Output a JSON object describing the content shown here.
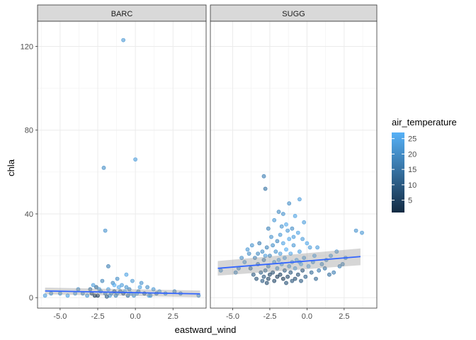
{
  "chart_data": {
    "type": "scatter",
    "xlabel": "eastward_wind",
    "ylabel": "chla",
    "xlim": [
      -6.5,
      4.7
    ],
    "ylim": [
      -5,
      132
    ],
    "x_ticks": [
      -5.0,
      -2.5,
      0.0,
      2.5
    ],
    "x_tick_labels": [
      "-5.0",
      "-2.5",
      "0.0",
      "2.5"
    ],
    "y_ticks": [
      0,
      40,
      80,
      120
    ],
    "y_tick_labels": [
      "0",
      "40",
      "80",
      "120"
    ],
    "grid": true,
    "color_scale": {
      "title": "air_temperature",
      "range": [
        1,
        27
      ],
      "ticks": [
        5,
        10,
        15,
        20,
        25
      ],
      "tick_labels": [
        "5",
        "10",
        "15",
        "20",
        "25"
      ],
      "low_color": "#132B43",
      "high_color": "#56B1F7"
    },
    "legend_position": "right",
    "trend_color": "#3366FF",
    "panels": [
      {
        "name": "BARC",
        "trend": {
          "x": [
            -6.0,
            4.3
          ],
          "y": [
            3.2,
            1.8
          ],
          "se_lower": [
            1.6,
            0.2
          ],
          "se_upper": [
            4.8,
            3.4
          ]
        },
        "points": [
          [
            -0.8,
            123,
            22
          ],
          [
            0.0,
            66,
            23
          ],
          [
            -2.1,
            62,
            20
          ],
          [
            -2.0,
            32,
            21
          ],
          [
            -1.8,
            15,
            17
          ],
          [
            -0.6,
            11,
            24
          ],
          [
            -1.2,
            9,
            20
          ],
          [
            -0.2,
            8,
            22
          ],
          [
            -2.2,
            8,
            18
          ],
          [
            0.4,
            7,
            21
          ],
          [
            -1.5,
            7,
            19
          ],
          [
            -0.9,
            6,
            23
          ],
          [
            -2.6,
            5,
            12
          ],
          [
            -1.1,
            5,
            25
          ],
          [
            0.8,
            5,
            20
          ],
          [
            -0.4,
            4,
            18
          ],
          [
            -1.8,
            4,
            24
          ],
          [
            -3.0,
            4,
            15
          ],
          [
            1.2,
            4,
            22
          ],
          [
            -1.4,
            3,
            9
          ],
          [
            -0.7,
            3,
            26
          ],
          [
            0.2,
            3,
            16
          ],
          [
            -2.3,
            3,
            21
          ],
          [
            -1.0,
            3,
            13
          ],
          [
            1.6,
            3,
            23
          ],
          [
            -2.9,
            2,
            6
          ],
          [
            -1.6,
            2,
            20
          ],
          [
            -0.3,
            2,
            24
          ],
          [
            0.6,
            2,
            11
          ],
          [
            -2.0,
            2,
            17
          ],
          [
            -1.2,
            2,
            22
          ],
          [
            -3.5,
            2,
            19
          ],
          [
            2.0,
            2,
            21
          ],
          [
            -0.8,
            2,
            8
          ],
          [
            0.1,
            2,
            25
          ],
          [
            -2.5,
            1,
            4
          ],
          [
            -1.7,
            1,
            23
          ],
          [
            -0.5,
            1,
            14
          ],
          [
            1.0,
            1,
            20
          ],
          [
            -3.2,
            1,
            22
          ],
          [
            -1.3,
            1,
            18
          ],
          [
            -2.7,
            1,
            3
          ],
          [
            -0.1,
            1,
            21
          ],
          [
            0.9,
            1,
            24
          ],
          [
            -1.9,
            0.5,
            10
          ],
          [
            -4.0,
            2,
            22
          ],
          [
            -5.0,
            2,
            21
          ],
          [
            -6.0,
            1,
            23
          ],
          [
            -5.6,
            2,
            20
          ],
          [
            -4.5,
            1,
            24
          ],
          [
            3.0,
            2,
            19
          ],
          [
            4.2,
            1,
            22
          ],
          [
            2.6,
            3,
            18
          ],
          [
            -3.8,
            4,
            20
          ],
          [
            -2.8,
            6,
            23
          ],
          [
            -1.4,
            6,
            26
          ],
          [
            -0.6,
            5,
            21
          ],
          [
            0.3,
            5,
            24
          ],
          [
            1.4,
            2,
            15
          ],
          [
            -2.4,
            4,
            22
          ]
        ]
      },
      {
        "name": "SUGG",
        "trend": {
          "x": [
            -6.0,
            3.6
          ],
          "y": [
            14.0,
            19.6
          ],
          "se_lower": [
            10.5,
            15.5
          ],
          "se_upper": [
            17.5,
            23.5
          ]
        },
        "points": [
          [
            -2.9,
            58,
            17
          ],
          [
            -2.8,
            52,
            15
          ],
          [
            -1.2,
            45,
            20
          ],
          [
            -0.5,
            47,
            23
          ],
          [
            -1.6,
            40,
            21
          ],
          [
            -1.9,
            41,
            19
          ],
          [
            -0.8,
            39,
            24
          ],
          [
            -2.2,
            37,
            22
          ],
          [
            -0.2,
            36,
            23
          ],
          [
            -1.4,
            35,
            25
          ],
          [
            -2.6,
            33,
            18
          ],
          [
            -1.0,
            33,
            20
          ],
          [
            -0.6,
            31,
            24
          ],
          [
            -1.8,
            30,
            22
          ],
          [
            -2.4,
            29,
            21
          ],
          [
            -1.2,
            28,
            25
          ],
          [
            -0.3,
            28,
            23
          ],
          [
            -2.0,
            27,
            19
          ],
          [
            -3.2,
            26,
            17
          ],
          [
            -1.6,
            26,
            24
          ],
          [
            -0.9,
            25,
            22
          ],
          [
            -2.7,
            24,
            18
          ],
          [
            0.2,
            24,
            23
          ],
          [
            -1.4,
            23,
            26
          ],
          [
            -3.0,
            22,
            20
          ],
          [
            -2.1,
            22,
            21
          ],
          [
            -0.5,
            22,
            24
          ],
          [
            -1.8,
            21,
            23
          ],
          [
            -1.1,
            21,
            25
          ],
          [
            -2.5,
            20,
            19
          ],
          [
            -3.5,
            19,
            18
          ],
          [
            -0.2,
            19,
            22
          ],
          [
            -1.5,
            19,
            24
          ],
          [
            -2.9,
            18,
            16
          ],
          [
            -0.7,
            18,
            25
          ],
          [
            -2.2,
            17,
            22
          ],
          [
            -1.0,
            17,
            23
          ],
          [
            0.4,
            17,
            21
          ],
          [
            -3.3,
            16,
            15
          ],
          [
            -1.7,
            16,
            24
          ],
          [
            -0.4,
            16,
            26
          ],
          [
            -2.6,
            15,
            17
          ],
          [
            -1.2,
            15,
            22
          ],
          [
            0.1,
            15,
            25
          ],
          [
            -3.8,
            14,
            12
          ],
          [
            -2.0,
            14,
            20
          ],
          [
            -0.8,
            14,
            24
          ],
          [
            -2.8,
            13,
            14
          ],
          [
            -1.5,
            13,
            10
          ],
          [
            -0.3,
            13,
            8
          ],
          [
            -3.1,
            12,
            11
          ],
          [
            -2.3,
            12,
            7
          ],
          [
            -1.1,
            12,
            9
          ],
          [
            0.3,
            12,
            13
          ],
          [
            -3.6,
            11,
            10
          ],
          [
            -2.5,
            11,
            6
          ],
          [
            -1.8,
            11,
            5
          ],
          [
            -0.6,
            11,
            8
          ],
          [
            -2.9,
            10,
            9
          ],
          [
            -2.0,
            10,
            4
          ],
          [
            -1.3,
            10,
            6
          ],
          [
            -0.1,
            10,
            11
          ],
          [
            -3.4,
            9,
            8
          ],
          [
            -2.6,
            9,
            5
          ],
          [
            -1.6,
            9,
            3
          ],
          [
            -0.8,
            9,
            7
          ],
          [
            -2.2,
            8,
            6
          ],
          [
            -1.0,
            8,
            9
          ],
          [
            0.6,
            9,
            12
          ],
          [
            -3.0,
            8,
            10
          ],
          [
            -1.4,
            7,
            8
          ],
          [
            -0.4,
            8,
            10
          ],
          [
            -2.7,
            7,
            7
          ],
          [
            0.8,
            13,
            16
          ],
          [
            1.0,
            16,
            20
          ],
          [
            1.3,
            18,
            19
          ],
          [
            1.6,
            20,
            22
          ],
          [
            2.0,
            22,
            21
          ],
          [
            2.4,
            16,
            18
          ],
          [
            0.7,
            24,
            23
          ],
          [
            1.2,
            14,
            15
          ],
          [
            1.8,
            12,
            17
          ],
          [
            2.6,
            19,
            20
          ],
          [
            3.3,
            32,
            21
          ],
          [
            3.7,
            31,
            22
          ],
          [
            -5.8,
            13,
            20
          ],
          [
            -4.6,
            14,
            18
          ],
          [
            -4.2,
            17,
            21
          ],
          [
            -4.8,
            12,
            19
          ],
          [
            -3.9,
            21,
            20
          ],
          [
            -4.0,
            23,
            22
          ],
          [
            -3.7,
            25,
            21
          ],
          [
            -4.4,
            19,
            20
          ],
          [
            2.2,
            15,
            18
          ],
          [
            1.5,
            11,
            14
          ],
          [
            0.5,
            20,
            24
          ],
          [
            0.0,
            26,
            25
          ],
          [
            -0.9,
            29,
            23
          ],
          [
            -1.3,
            32,
            22
          ],
          [
            -1.7,
            34,
            21
          ],
          [
            -2.3,
            25,
            20
          ],
          [
            -3.3,
            21,
            19
          ],
          [
            -0.5,
            17,
            25
          ],
          [
            -1.9,
            18,
            24
          ],
          [
            -2.8,
            20,
            23
          ]
        ]
      }
    ]
  }
}
